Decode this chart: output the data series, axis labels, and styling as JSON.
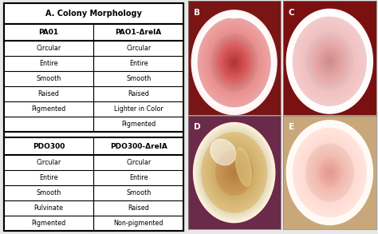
{
  "title": "A. Colony Morphology",
  "table1_headers": [
    "PA01",
    "PAO1-ΔrelA"
  ],
  "table1_rows": [
    [
      "Circular",
      "Circular"
    ],
    [
      "Entire",
      "Entire"
    ],
    [
      "Smooth",
      "Smooth"
    ],
    [
      "Raised",
      "Raised"
    ],
    [
      "Pigmented",
      "Lighter in Color"
    ],
    [
      "",
      "Pigmented"
    ]
  ],
  "table2_headers": [
    "PDO300",
    "PDO300-ΔrelA"
  ],
  "table2_rows": [
    [
      "Circular",
      "Circular"
    ],
    [
      "Entire",
      "Entire"
    ],
    [
      "Smooth",
      "Smooth"
    ],
    [
      "Pulvinate",
      "Raised"
    ],
    [
      "Pigmented",
      "Non-pigmented"
    ]
  ],
  "bg_color": "#f0f0f0",
  "panel_B_bg": "#7a1515",
  "panel_C_bg": "#7a1010",
  "panel_D_bg": "#6a2a4a",
  "panel_E_bg": "#c8a87a"
}
